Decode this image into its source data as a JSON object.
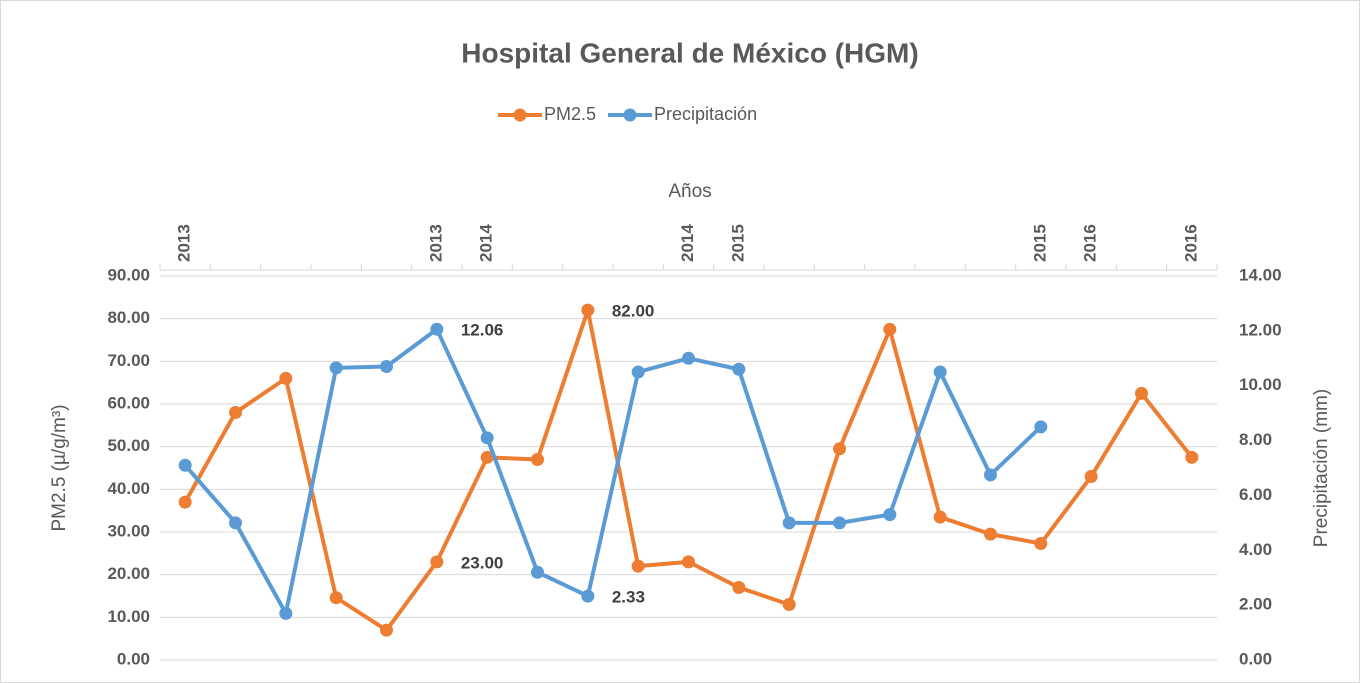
{
  "chart_data": {
    "type": "line",
    "title": "Hospital General de México (HGM)",
    "x_label": "Años",
    "y_label": "PM2.5 (µ/g/m³)",
    "y2_label": "Precipitación (mm)",
    "categories": [
      "2013",
      null,
      null,
      null,
      null,
      "2013",
      "2014",
      null,
      null,
      null,
      "2014",
      "2015",
      null,
      null,
      null,
      null,
      null,
      "2015",
      "2016",
      null,
      "2016"
    ],
    "series": [
      {
        "name": "PM2.5",
        "color": "#ED7D31",
        "values": [
          37,
          58,
          66,
          14.6,
          7,
          23,
          47.5,
          47,
          82,
          22,
          23,
          17,
          13,
          49.5,
          77.5,
          33.5,
          29.5,
          27.3,
          43,
          62.5,
          47.5
        ],
        "value_labels": [
          null,
          null,
          null,
          null,
          null,
          "23.00",
          null,
          null,
          "82.00",
          null,
          null,
          null,
          null,
          null,
          null,
          null,
          null,
          null,
          null,
          null,
          null
        ]
      },
      {
        "name": "Precipitación",
        "color": "#5B9BD5",
        "axis": "y2",
        "values": [
          7.1,
          5.0,
          1.7,
          10.65,
          10.7,
          12.06,
          8.1,
          3.2,
          2.33,
          10.5,
          11.0,
          10.6,
          5.0,
          5.0,
          5.3,
          10.5,
          6.75,
          8.5,
          null,
          null,
          null
        ],
        "value_labels": [
          null,
          null,
          null,
          null,
          null,
          "12.06",
          null,
          null,
          "2.33",
          null,
          null,
          null,
          null,
          null,
          null,
          null,
          null,
          null,
          null,
          null,
          null
        ]
      }
    ],
    "ylim": [
      0,
      90
    ],
    "yticks": [
      {
        "value": 0,
        "label": "0.00"
      },
      {
        "value": 10,
        "label": "10.00"
      },
      {
        "value": 20,
        "label": "20.00"
      },
      {
        "value": 30,
        "label": "30.00"
      },
      {
        "value": 40,
        "label": "40.00"
      },
      {
        "value": 50,
        "label": "50.00"
      },
      {
        "value": 60,
        "label": "60.00"
      },
      {
        "value": 70,
        "label": "70.00"
      },
      {
        "value": 80,
        "label": "80.00"
      },
      {
        "value": 90,
        "label": "90.00"
      }
    ],
    "y2lim": [
      0,
      14
    ],
    "y2ticks": [
      {
        "value": 0,
        "label": "0.00"
      },
      {
        "value": 2,
        "label": "2.00"
      },
      {
        "value": 4,
        "label": "4.00"
      },
      {
        "value": 6,
        "label": "6.00"
      },
      {
        "value": 8,
        "label": "8.00"
      },
      {
        "value": 10,
        "label": "10.00"
      },
      {
        "value": 12,
        "label": "12.00"
      },
      {
        "value": 14,
        "label": "14.00"
      }
    ],
    "grid": true,
    "legend": "top"
  }
}
